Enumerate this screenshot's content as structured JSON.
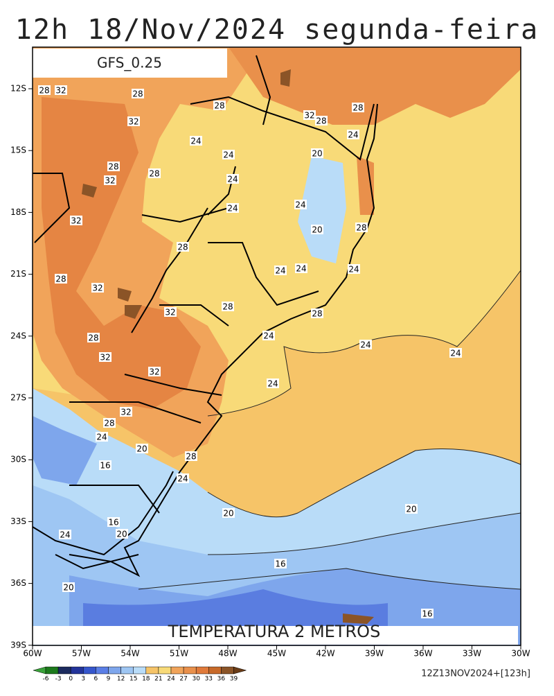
{
  "header": {
    "title": "12h 18/Nov/2024 segunda-feira",
    "model": "GFS_0.25"
  },
  "map": {
    "title": "TEMPERATURA 2 METROS",
    "lat_labels": [
      "12S",
      "15S",
      "18S",
      "21S",
      "24S",
      "27S",
      "30S",
      "33S",
      "36S",
      "39S"
    ],
    "lon_labels": [
      "60W",
      "57W",
      "54W",
      "51W",
      "48W",
      "45W",
      "42W",
      "39W",
      "36W",
      "33W",
      "30W"
    ],
    "contour_labels": [
      "28",
      "32",
      "28",
      "28",
      "32",
      "28",
      "28",
      "32",
      "24",
      "24",
      "24",
      "20",
      "28",
      "32",
      "28",
      "24",
      "24",
      "24",
      "32",
      "20",
      "28",
      "28",
      "24",
      "24",
      "24",
      "28",
      "32",
      "28",
      "32",
      "28",
      "24",
      "28",
      "24",
      "24",
      "32",
      "32",
      "24",
      "32",
      "28",
      "24",
      "20",
      "28",
      "16",
      "24",
      "20",
      "20",
      "16",
      "20",
      "24",
      "16",
      "20",
      "16"
    ]
  },
  "colorbar": {
    "labels": [
      "-6",
      "-3",
      "0",
      "3",
      "6",
      "9",
      "12",
      "15",
      "18",
      "21",
      "24",
      "27",
      "30",
      "33",
      "36",
      "39"
    ]
  },
  "footer": {
    "run": "12Z13NOV2024+[123h]"
  }
}
